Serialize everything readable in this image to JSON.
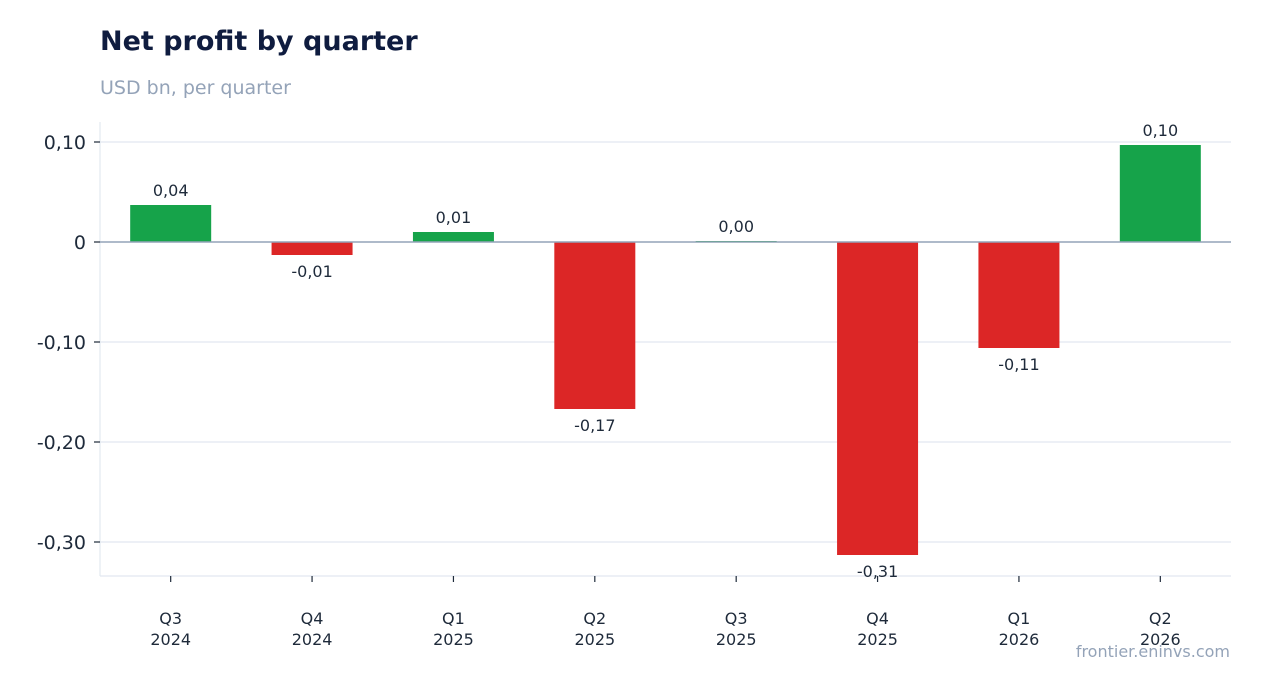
{
  "chart_data": {
    "type": "bar",
    "title": "Net profit by quarter",
    "subtitle": "USD bn, per quarter",
    "source": "frontier.eninvs.com",
    "categories": [
      [
        "Q3",
        "2024"
      ],
      [
        "Q4",
        "2024"
      ],
      [
        "Q1",
        "2025"
      ],
      [
        "Q2",
        "2025"
      ],
      [
        "Q3",
        "2025"
      ],
      [
        "Q4",
        "2025"
      ],
      [
        "Q1",
        "2026"
      ],
      [
        "Q2",
        "2026"
      ]
    ],
    "values": [
      0.037,
      -0.013,
      0.01,
      -0.167,
      0.001,
      -0.313,
      -0.106,
      0.097
    ],
    "value_labels": [
      "0,04",
      "-0,01",
      "0,01",
      "-0,17",
      "0,00",
      "-0,31",
      "-0,11",
      "0,10"
    ],
    "ylim": [
      -0.334,
      0.12
    ],
    "yticks": [
      0.1,
      0,
      -0.1,
      -0.2,
      -0.3
    ],
    "ytick_labels": [
      "0,10",
      "0",
      "-0,10",
      "-0,20",
      "-0,30"
    ],
    "grid": true,
    "colors": {
      "positive": "#16a34a",
      "negative": "#dc2626",
      "grid": "#e2e8f0",
      "zero_line": "#94a3b8",
      "axis": "#e2e8f0"
    }
  }
}
